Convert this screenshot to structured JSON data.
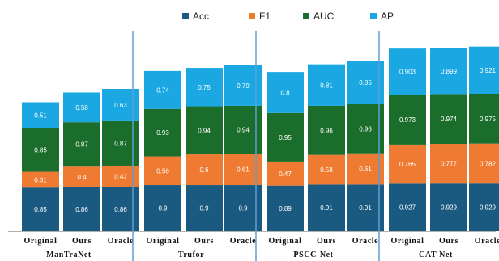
{
  "chart_data": {
    "type": "bar",
    "stacked": true,
    "title": "",
    "xlabel": "",
    "ylabel": "",
    "legend": {
      "position": "top-center",
      "entries": [
        "Acc",
        "F1",
        "AUC",
        "AP"
      ]
    },
    "colors": {
      "Acc": "#1b5a80",
      "F1": "#ee7b31",
      "AUC": "#1a6d2a",
      "AP": "#1aa7e2",
      "separator": "#5d9fd6"
    },
    "groups": [
      {
        "name": "ManTraNet",
        "categories": [
          "Original",
          "Ours",
          "Oracle"
        ],
        "series": [
          {
            "name": "Acc",
            "values": [
              0.85,
              0.86,
              0.86
            ]
          },
          {
            "name": "F1",
            "values": [
              0.31,
              0.4,
              0.42
            ]
          },
          {
            "name": "AUC",
            "values": [
              0.85,
              0.87,
              0.87
            ]
          },
          {
            "name": "AP",
            "values": [
              0.51,
              0.58,
              0.63
            ]
          }
        ]
      },
      {
        "name": "Trufor",
        "categories": [
          "Original",
          "Ours",
          "Oracle"
        ],
        "series": [
          {
            "name": "Acc",
            "values": [
              0.9,
              0.9,
              0.9
            ]
          },
          {
            "name": "F1",
            "values": [
              0.56,
              0.6,
              0.61
            ]
          },
          {
            "name": "AUC",
            "values": [
              0.93,
              0.94,
              0.94
            ]
          },
          {
            "name": "AP",
            "values": [
              0.74,
              0.75,
              0.79
            ]
          }
        ]
      },
      {
        "name": "PSCC-Net",
        "categories": [
          "Original",
          "Ours",
          "Oracle"
        ],
        "series": [
          {
            "name": "Acc",
            "values": [
              0.89,
              0.91,
              0.91
            ]
          },
          {
            "name": "F1",
            "values": [
              0.47,
              0.58,
              0.61
            ]
          },
          {
            "name": "AUC",
            "values": [
              0.95,
              0.96,
              0.96
            ]
          },
          {
            "name": "AP",
            "values": [
              0.8,
              0.81,
              0.85
            ]
          }
        ]
      },
      {
        "name": "CAT-Net",
        "categories": [
          "Original",
          "Ours",
          "Oracle"
        ],
        "series": [
          {
            "name": "Acc",
            "values": [
              0.927,
              0.929,
              0.929
            ]
          },
          {
            "name": "F1",
            "values": [
              0.765,
              0.777,
              0.782
            ]
          },
          {
            "name": "AUC",
            "values": [
              0.973,
              0.974,
              0.975
            ]
          },
          {
            "name": "AP",
            "values": [
              0.903,
              0.899,
              0.921
            ]
          }
        ]
      }
    ]
  }
}
